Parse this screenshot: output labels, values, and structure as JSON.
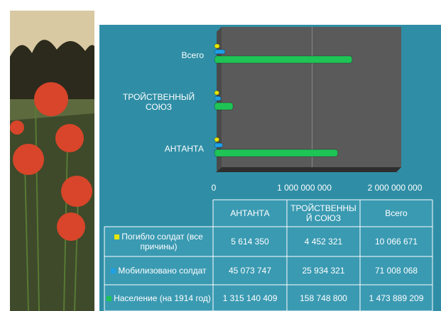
{
  "chart_data": {
    "type": "bar3d",
    "categories": [
      "АНТАНТА",
      "ТРОЙСТВЕННЫЙ СОЮЗ",
      "Всего"
    ],
    "series": [
      {
        "name": "Погибло солдат (все причины)",
        "color": "#e6e600",
        "values": [
          5614350,
          4452321,
          10066671
        ],
        "value_labels": [
          "5 614 350",
          "4 452 321",
          "10 066 671"
        ]
      },
      {
        "name": "Мобилизовано солдат",
        "color": "#1ea0e6",
        "values": [
          45073747,
          25934321,
          71008068
        ],
        "value_labels": [
          "45 073 747",
          "25 934 321",
          "71 008 068"
        ]
      },
      {
        "name": "Население (на 1914 год)",
        "color": "#1fc456",
        "values": [
          1315140409,
          158748800,
          1473889209
        ],
        "value_labels": [
          "1 315 140 409",
          "158 748 800",
          "1 473 889 209"
        ]
      }
    ],
    "xlim": [
      0,
      2000000000
    ],
    "xticks": [
      0,
      {
        "value": 1000000000,
        "label": "1 000 000 000"
      },
      {
        "value": 2000000000,
        "label": "2 000 000 000"
      }
    ],
    "grid": true
  }
}
